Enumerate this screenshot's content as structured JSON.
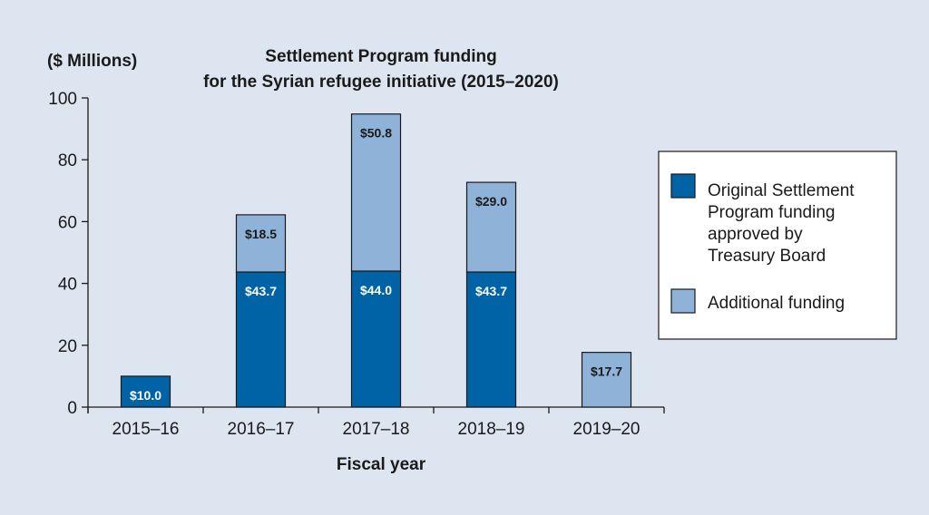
{
  "chart_data": {
    "type": "bar",
    "stacked": true,
    "title": "Settlement Program funding",
    "subtitle": "for the Syrian refugee initiative (2015–2020)",
    "ylabel": "($ Millions)",
    "xlabel": "Fiscal year",
    "categories": [
      "2015–16",
      "2016–17",
      "2017–18",
      "2018–19",
      "2019–20"
    ],
    "ylim": [
      0,
      100
    ],
    "yticks": [
      0,
      20,
      40,
      60,
      80,
      100
    ],
    "grid": false,
    "legend_position": "right",
    "series": [
      {
        "name": "Original Settlement Program funding approved by Treasury Board",
        "legend_lines": [
          "Original Settlement",
          "Program funding",
          "approved by",
          "Treasury Board"
        ],
        "color": "#0063a6",
        "label_color": "#ffffff",
        "values": [
          10.0,
          43.7,
          44.0,
          43.7,
          0
        ],
        "labels": [
          "$10.0",
          "$43.7",
          "$44.0",
          "$43.7",
          ""
        ]
      },
      {
        "name": "Additional funding",
        "legend_lines": [
          "Additional funding"
        ],
        "color": "#8fb2d9",
        "label_color": "#1a1a1a",
        "values": [
          0,
          18.5,
          50.8,
          29.0,
          17.7
        ],
        "labels": [
          "",
          "$18.5",
          "$50.8",
          "$29.0",
          "$17.7"
        ]
      }
    ]
  }
}
